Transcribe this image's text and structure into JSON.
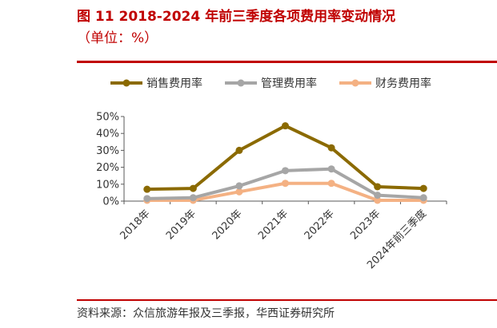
{
  "header": {
    "title_line1": "图 11   2018-2024 年前三季度各项费用率变动情况",
    "title_line2": "（单位：%）"
  },
  "footer": {
    "source": "资料来源：众信旅游年报及三季报，华西证券研究所"
  },
  "colors": {
    "title": "#c00000",
    "rule": "#c00000",
    "sales": "#8b6a00",
    "management": "#a6a6a6",
    "finance": "#f4b183"
  },
  "chart_data": {
    "type": "line",
    "title": "",
    "xlabel": "",
    "ylabel": "",
    "categories": [
      "2018年",
      "2019年",
      "2020年",
      "2021年",
      "2022年",
      "2023年",
      "2024年前三季度"
    ],
    "y_ticks": [
      "0%",
      "10%",
      "20%",
      "30%",
      "40%",
      "50%"
    ],
    "ylim": [
      0,
      50
    ],
    "grid": false,
    "legend_position": "top",
    "series": [
      {
        "name": "销售费用率",
        "color": "#8b6a00",
        "values": [
          7.0,
          7.5,
          30.0,
          44.5,
          31.5,
          8.5,
          7.5
        ]
      },
      {
        "name": "管理费用率",
        "color": "#a6a6a6",
        "values": [
          1.5,
          2.0,
          9.0,
          18.0,
          19.0,
          3.5,
          2.0
        ]
      },
      {
        "name": "财务费用率",
        "color": "#f4b183",
        "values": [
          0.5,
          0.5,
          5.5,
          10.5,
          10.5,
          0.5,
          0.5
        ]
      }
    ]
  }
}
